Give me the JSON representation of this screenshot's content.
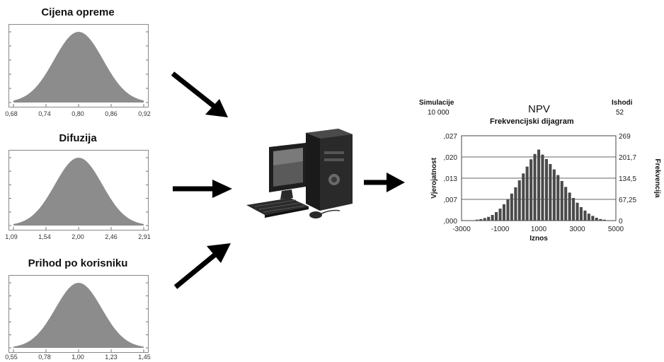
{
  "inputs": [
    {
      "title": "Cijena opreme",
      "ticks": [
        "0,68",
        "0,74",
        "0,80",
        "0,86",
        "0,92"
      ],
      "mean": 0.8,
      "sd": 0.045,
      "xmin": 0.68,
      "xmax": 0.92
    },
    {
      "title": "Difuzija",
      "ticks": [
        "1,09",
        "1,54",
        "2,00",
        "2,46",
        "2,91"
      ],
      "mean": 2.0,
      "sd": 0.33,
      "xmin": 1.09,
      "xmax": 2.91
    },
    {
      "title": "Prihod po korisniku",
      "ticks": [
        "0,55",
        "0,78",
        "1,00",
        "1,23",
        "1,45"
      ],
      "mean": 1.0,
      "sd": 0.16,
      "xmin": 0.55,
      "xmax": 1.45
    }
  ],
  "output": {
    "left_header": "Simulacije",
    "left_value": "10 000",
    "right_header": "Ishodi",
    "right_value": "52",
    "title": "NPV",
    "subtitle": "Frekvencijski dijagram",
    "ylabel_left": "Vjerojatnost",
    "ylabel_right": "Frekvencija",
    "xlabel": "Iznos",
    "left_ticks": [
      ",027",
      ",020",
      ",013",
      ",007",
      ",000"
    ],
    "right_ticks": [
      "269",
      "201,7",
      "134,5",
      "67,25",
      "0"
    ],
    "x_ticks": [
      "-3000",
      "-1000",
      "1000",
      "3000",
      "5000"
    ]
  },
  "chart_data": {
    "type": "bar",
    "title": "NPV",
    "subtitle": "Frekvencijski dijagram",
    "xlabel": "Iznos",
    "ylabel": "Vjerojatnost",
    "xlim": [
      -3000,
      5000
    ],
    "ylim": [
      0,
      0.027
    ],
    "grid": true,
    "x": [
      -2200,
      -2000,
      -1800,
      -1600,
      -1400,
      -1200,
      -1000,
      -800,
      -600,
      -400,
      -200,
      0,
      200,
      400,
      600,
      800,
      1000,
      1200,
      1400,
      1600,
      1800,
      2000,
      2200,
      2400,
      2600,
      2800,
      3000,
      3200,
      3400,
      3600,
      3800,
      4000,
      4200,
      4400
    ],
    "values": [
      0.0003,
      0.0005,
      0.0008,
      0.0012,
      0.0018,
      0.0027,
      0.0038,
      0.0052,
      0.0068,
      0.0086,
      0.0106,
      0.0128,
      0.015,
      0.0172,
      0.0195,
      0.0212,
      0.0226,
      0.021,
      0.0196,
      0.018,
      0.0163,
      0.0145,
      0.0126,
      0.0107,
      0.0089,
      0.0072,
      0.0057,
      0.0043,
      0.0032,
      0.0022,
      0.0015,
      0.0009,
      0.0005,
      0.0003
    ]
  }
}
